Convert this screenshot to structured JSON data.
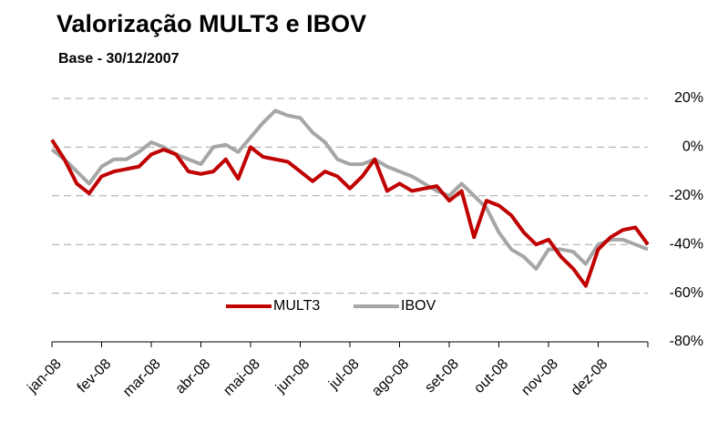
{
  "chart_data": {
    "type": "line",
    "title": "Valorização MULT3 e IBOV",
    "subtitle": "Base - 30/12/2007",
    "categories": [
      "jan-08",
      null,
      null,
      null,
      "fev-08",
      null,
      null,
      null,
      "mar-08",
      null,
      null,
      null,
      "abr-08",
      null,
      null,
      null,
      "mai-08",
      null,
      null,
      null,
      "jun-08",
      null,
      null,
      null,
      "jul-08",
      null,
      null,
      null,
      "ago-08",
      null,
      null,
      null,
      "set-08",
      null,
      null,
      null,
      "out-08",
      null,
      null,
      null,
      "nov-08",
      null,
      null,
      null,
      "dez-08",
      null,
      null,
      null,
      null
    ],
    "series": [
      {
        "name": "MULT3",
        "color": "#c00000",
        "values": [
          3,
          -5,
          -15,
          -19,
          -12,
          -10,
          -9,
          -8,
          -3,
          -1,
          -3,
          -10,
          -11,
          -10,
          -5,
          -13,
          0,
          -4,
          -5,
          -6,
          -10,
          -14,
          -10,
          -12,
          -17,
          -12,
          -5,
          -18,
          -15,
          -18,
          -17,
          -16,
          -22,
          -18,
          -37,
          -22,
          -24,
          -28,
          -35,
          -40,
          -38,
          -45,
          -50,
          -57,
          -42,
          -37,
          -34,
          -33,
          -40
        ]
      },
      {
        "name": "IBOV",
        "color": "#a6a6a6",
        "values": [
          -1,
          -5,
          -10,
          -15,
          -8,
          -5,
          -5,
          -2,
          2,
          0,
          -3,
          -5,
          -7,
          0,
          1,
          -2,
          4,
          10,
          15,
          13,
          12,
          6,
          2,
          -5,
          -7,
          -7,
          -5,
          -8,
          -10,
          -12,
          -15,
          -18,
          -20,
          -15,
          -20,
          -25,
          -35,
          -42,
          -45,
          -50,
          -42,
          -42,
          -43,
          -48,
          -40,
          -38,
          -38,
          -40,
          -42
        ]
      }
    ],
    "ylim": [
      -80,
      20
    ],
    "yticks": [
      {
        "value": -80,
        "label": "-80%"
      },
      {
        "value": -60,
        "label": "-60%"
      },
      {
        "value": -40,
        "label": "-40%"
      },
      {
        "value": -20,
        "label": "-20%"
      },
      {
        "value": 0,
        "label": "0%"
      },
      {
        "value": 20,
        "label": "20%"
      }
    ],
    "grid": true,
    "legend": "bottom"
  }
}
